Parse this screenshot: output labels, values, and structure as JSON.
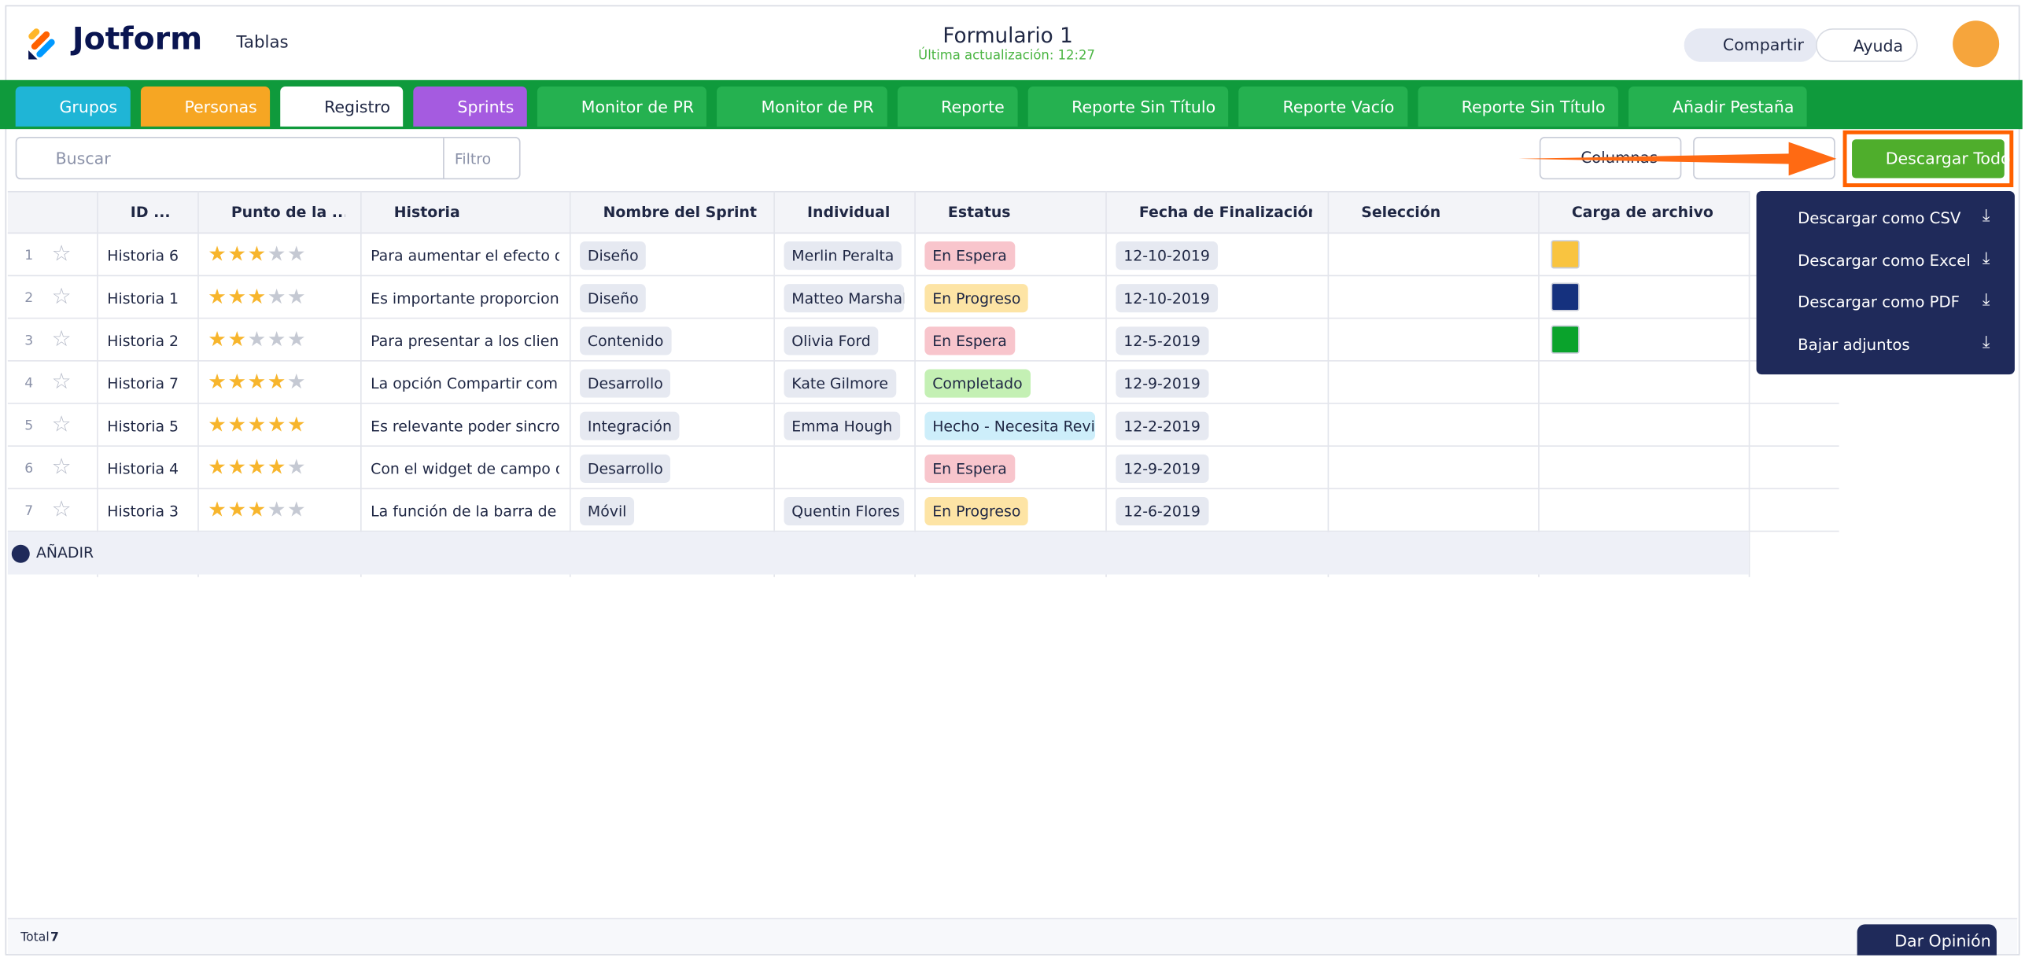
{
  "header": {
    "logo": "Jotform",
    "tables_menu": "Tablas",
    "form_title": "Formulario 1",
    "last_update": "Última actualización: 12:27",
    "share": "Compartir",
    "help": "Ayuda"
  },
  "tabs": [
    "Grupos",
    "Personas",
    "Registro",
    "Sprints",
    "Monitor de PR",
    "Monitor de PR",
    "Reporte",
    "Reporte Sin Título",
    "Reporte Vacío",
    "Reporte Sin Título",
    "Añadir Pestaña"
  ],
  "toolbar": {
    "search_placeholder": "Buscar",
    "filter": "Filtro",
    "columns": "Columnas",
    "download_all": "Descargar Todo"
  },
  "table": {
    "columns": [
      "ID ...",
      "Punto de la ...",
      "Historia",
      "Nombre del Sprint",
      "Individual",
      "Estatus",
      "Fecha de Finalización",
      "Selección",
      "Carga de archivo"
    ],
    "rows": [
      {
        "n": 1,
        "id": "Historia 6",
        "rating": 3,
        "story": "Para aumentar el efecto d...",
        "sprint": "Diseño",
        "person": "Merlin Peralta",
        "status": "En Espera",
        "status_color": "#f8c5cc",
        "date": "12-10-2019",
        "file": "#f9c440"
      },
      {
        "n": 2,
        "id": "Historia 1",
        "rating": 3,
        "story": "Es importante proporcion...",
        "sprint": "Diseño",
        "person": "Matteo Marshall",
        "status": "En Progreso",
        "status_color": "#fde4a5",
        "date": "12-10-2019",
        "file": "#15317e"
      },
      {
        "n": 3,
        "id": "Historia 2",
        "rating": 2,
        "story": "Para presentar a los client...",
        "sprint": "Contenido",
        "person": "Olivia Ford",
        "status": "En Espera",
        "status_color": "#f8c5cc",
        "date": "12-5-2019",
        "file": "#0aa32c"
      },
      {
        "n": 4,
        "id": "Historia 7",
        "rating": 4,
        "story": "La opción Compartir com...",
        "sprint": "Desarrollo",
        "person": "Kate Gilmore",
        "status": "Completado",
        "status_color": "#c4f0b4",
        "date": "12-9-2019"
      },
      {
        "n": 5,
        "id": "Historia 5",
        "rating": 5,
        "story": "Es relevante poder sincron...",
        "sprint": "Integración",
        "person": "Emma Hough",
        "status": "Hecho - Necesita Revisión",
        "status_color": "#cdeefa",
        "date": "12-2-2019"
      },
      {
        "n": 6,
        "id": "Historia 4",
        "rating": 4,
        "story": "Con el widget de campo d...",
        "sprint": "Desarrollo",
        "status": "En Espera",
        "status_color": "#f8c5cc",
        "date": "12-9-2019"
      },
      {
        "n": 7,
        "id": "Historia 3",
        "rating": 3,
        "story": "La función de la barra de ...",
        "sprint": "Móvil",
        "person": "Quentin Flores",
        "status": "En Progreso",
        "status_color": "#fde4a5",
        "date": "12-6-2019"
      }
    ],
    "add_row": "AÑADIR"
  },
  "download_menu": [
    "Descargar como CSV",
    "Descargar como Excel",
    "Descargar como PDF",
    "Bajar adjuntos"
  ],
  "footer": {
    "total_label": "Total",
    "total": 7,
    "feedback": "Dar Opinión"
  }
}
